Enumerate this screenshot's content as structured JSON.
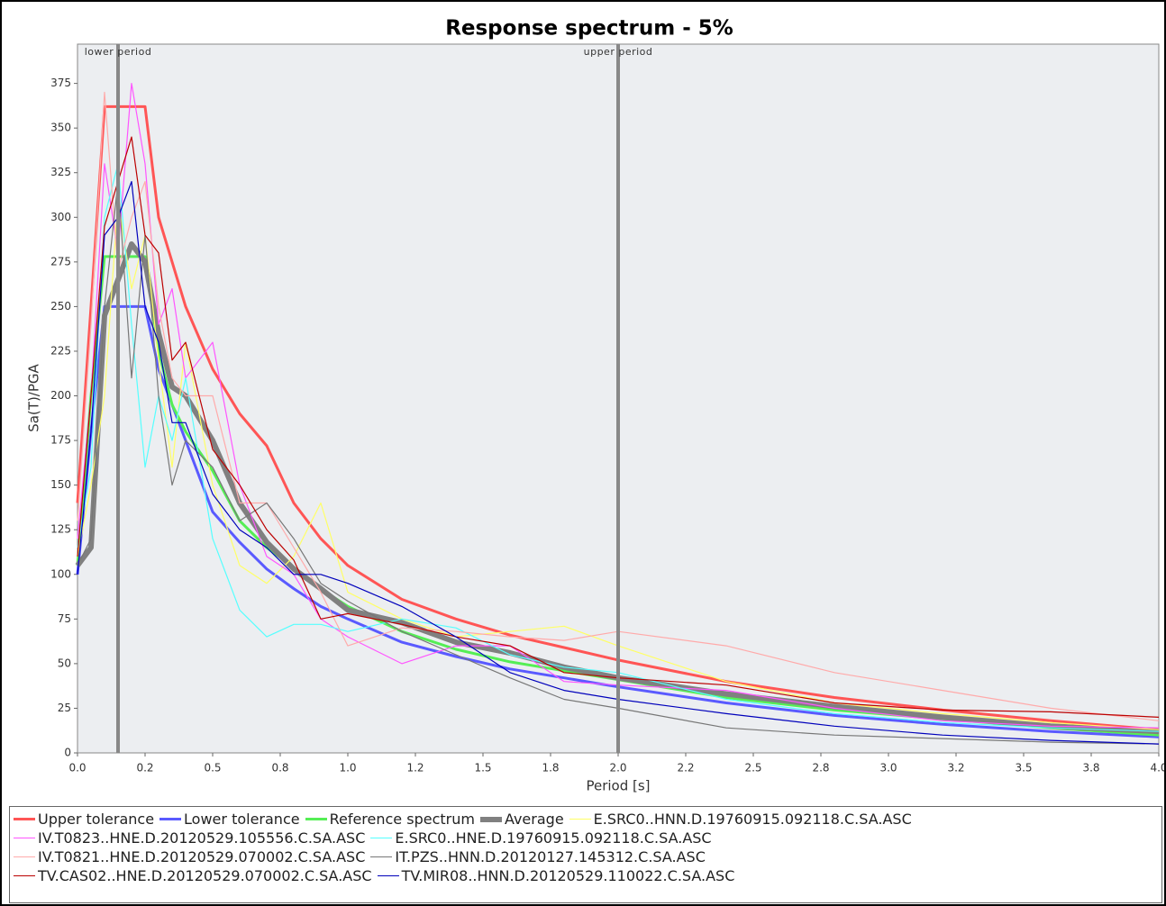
{
  "chart_data": {
    "type": "line",
    "title": "Response spectrum - 5%",
    "x_label": "Period [s]",
    "y_label": "Sa(T)/PGA",
    "xlim": [
      0,
      4
    ],
    "ylim": [
      0,
      397
    ],
    "xticks": [
      {
        "value": 0,
        "label": "0.0"
      },
      {
        "value": 0.25,
        "label": "0.2"
      },
      {
        "value": 0.5,
        "label": "0.5"
      },
      {
        "value": 0.75,
        "label": "0.8"
      },
      {
        "value": 1,
        "label": "1.0"
      },
      {
        "value": 1.25,
        "label": "1.2"
      },
      {
        "value": 1.5,
        "label": "1.5"
      },
      {
        "value": 1.75,
        "label": "1.8"
      },
      {
        "value": 2,
        "label": "2.0"
      },
      {
        "value": 2.25,
        "label": "2.2"
      },
      {
        "value": 2.5,
        "label": "2.5"
      },
      {
        "value": 2.75,
        "label": "2.8"
      },
      {
        "value": 3,
        "label": "3.0"
      },
      {
        "value": 3.25,
        "label": "3.2"
      },
      {
        "value": 3.5,
        "label": "3.5"
      },
      {
        "value": 3.75,
        "label": "3.8"
      },
      {
        "value": 4,
        "label": "4.0"
      }
    ],
    "yticks": [
      0,
      25,
      50,
      75,
      100,
      125,
      150,
      175,
      200,
      225,
      250,
      275,
      300,
      325,
      350,
      375
    ],
    "markers": [
      {
        "x": 0.15,
        "label": "lower period"
      },
      {
        "x": 2.0,
        "label": "upper period"
      }
    ],
    "x": [
      0,
      0.05,
      0.1,
      0.15,
      0.2,
      0.25,
      0.3,
      0.35,
      0.4,
      0.5,
      0.6,
      0.7,
      0.8,
      0.9,
      1.0,
      1.2,
      1.4,
      1.6,
      1.8,
      2.0,
      2.4,
      2.8,
      3.2,
      3.6,
      4.0
    ],
    "series": [
      {
        "name": "Upper tolerance",
        "color": "#ff5555",
        "values": [
          140,
          250,
          362,
          362,
          362,
          362,
          300,
          275,
          250,
          215,
          190,
          172,
          140,
          120,
          105,
          86,
          75,
          66,
          59,
          52,
          40,
          31,
          24,
          18,
          13
        ]
      },
      {
        "name": "Lower tolerance",
        "color": "#5a5aff",
        "values": [
          100,
          180,
          250,
          250,
          250,
          250,
          215,
          195,
          175,
          135,
          118,
          103,
          92,
          82,
          75,
          62,
          54,
          47,
          42,
          37,
          28,
          21,
          16,
          12,
          9
        ]
      },
      {
        "name": "Reference spectrum",
        "color": "#55ee55",
        "values": [
          105,
          200,
          278,
          278,
          278,
          278,
          225,
          195,
          180,
          158,
          130,
          115,
          104,
          92,
          82,
          68,
          58,
          51,
          46,
          41,
          31,
          24,
          19,
          14,
          10
        ]
      },
      {
        "name": "Average",
        "color": "#808080",
        "values": [
          105,
          115,
          245,
          265,
          285,
          275,
          235,
          205,
          200,
          175,
          140,
          118,
          103,
          92,
          80,
          73,
          62,
          56,
          48,
          42,
          33,
          26,
          20,
          15,
          12
        ]
      },
      {
        "name": "E.SRC0..HNN.D.19760915.092118.C.SA.ASC",
        "color": "#ffff66",
        "values": [
          110,
          150,
          200,
          310,
          260,
          290,
          220,
          160,
          230,
          150,
          105,
          95,
          110,
          140,
          90,
          75,
          65,
          68,
          71,
          60,
          40,
          28,
          22,
          17,
          13
        ]
      },
      {
        "name": "IV.T0823..HNE.D.20120529.105556.C.SA.ASC",
        "color": "#ff55ff",
        "values": [
          120,
          200,
          330,
          280,
          375,
          330,
          240,
          260,
          210,
          230,
          150,
          110,
          100,
          75,
          65,
          50,
          60,
          60,
          40,
          38,
          35,
          25,
          18,
          15,
          14
        ]
      },
      {
        "name": "E.SRC0..HNE.D.19760915.092118.C.SA.ASC",
        "color": "#55ffff",
        "values": [
          115,
          160,
          300,
          330,
          240,
          160,
          200,
          175,
          210,
          120,
          80,
          65,
          72,
          72,
          68,
          75,
          70,
          55,
          48,
          45,
          30,
          22,
          17,
          14,
          12
        ]
      },
      {
        "name": "IV.T0821..HNE.D.20120529.070002.C.SA.ASC",
        "color": "#ffaaaa",
        "values": [
          130,
          240,
          370,
          270,
          300,
          320,
          250,
          210,
          200,
          200,
          140,
          140,
          115,
          90,
          60,
          70,
          68,
          65,
          63,
          68,
          60,
          45,
          35,
          25,
          18
        ]
      },
      {
        "name": "IT.PZS..HNN.D.20120127.145312.C.SA.ASC",
        "color": "#777777",
        "values": [
          105,
          120,
          250,
          320,
          210,
          290,
          200,
          150,
          175,
          160,
          130,
          140,
          120,
          95,
          85,
          68,
          55,
          42,
          30,
          25,
          14,
          10,
          8,
          6,
          5
        ]
      },
      {
        "name": "TV.CAS02..HNE.D.20120529.070002.C.SA.ASC",
        "color": "#bb0000",
        "values": [
          110,
          200,
          295,
          320,
          345,
          290,
          280,
          220,
          230,
          170,
          150,
          125,
          108,
          75,
          78,
          72,
          65,
          60,
          45,
          42,
          38,
          28,
          24,
          23,
          20
        ]
      },
      {
        "name": "TV.MIR08..HNN.D.20120529.110022.C.SA.ASC",
        "color": "#0000bb",
        "values": [
          100,
          180,
          290,
          300,
          320,
          250,
          230,
          185,
          185,
          145,
          125,
          115,
          100,
          100,
          95,
          82,
          65,
          45,
          35,
          30,
          22,
          15,
          10,
          7,
          5
        ]
      }
    ]
  }
}
